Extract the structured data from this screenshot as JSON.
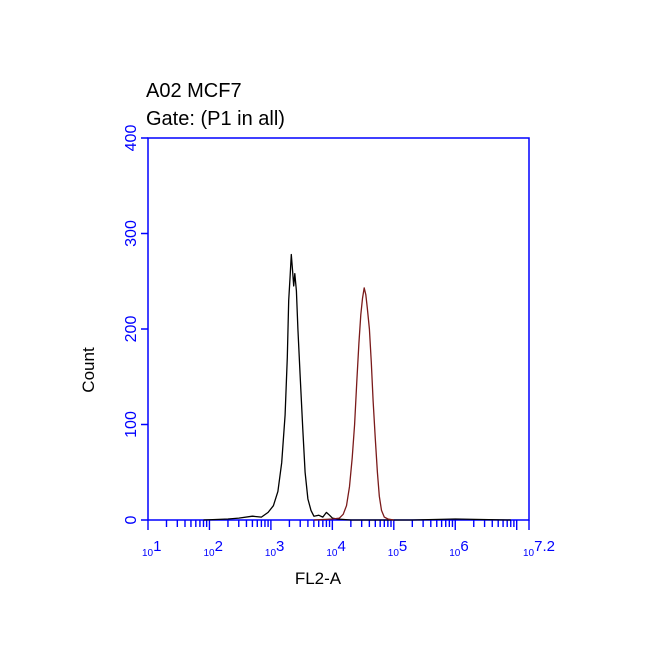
{
  "chart_data": {
    "type": "line",
    "title": "A02 MCF7",
    "subtitle": "Gate: (P1 in all)",
    "xlabel": "FL2-A",
    "ylabel": "Count",
    "x_scale": "log",
    "xlim": [
      10,
      15848932
    ],
    "ylim": [
      0,
      400
    ],
    "y_ticks": [
      0,
      100,
      200,
      300,
      400
    ],
    "x_tick_labels": [
      {
        "base": "10",
        "exp": "1",
        "value": 10
      },
      {
        "base": "10",
        "exp": "2",
        "value": 100
      },
      {
        "base": "10",
        "exp": "3",
        "value": 1000
      },
      {
        "base": "10",
        "exp": "4",
        "value": 10000
      },
      {
        "base": "10",
        "exp": "5",
        "value": 100000
      },
      {
        "base": "10",
        "exp": "6",
        "value": 1000000
      },
      {
        "base": "10",
        "exp": "7.2",
        "value": 15848932
      }
    ],
    "grid": false,
    "colors": {
      "axis": "#0000ff",
      "series_1": "#000000",
      "series_2": "#7a1a1a"
    },
    "series": [
      {
        "color": "#000000",
        "points": [
          [
            80,
            0
          ],
          [
            200,
            1
          ],
          [
            300,
            2
          ],
          [
            500,
            4
          ],
          [
            700,
            3
          ],
          [
            900,
            8
          ],
          [
            1100,
            15
          ],
          [
            1300,
            30
          ],
          [
            1500,
            60
          ],
          [
            1700,
            110
          ],
          [
            1850,
            170
          ],
          [
            1950,
            230
          ],
          [
            2050,
            255
          ],
          [
            2150,
            278
          ],
          [
            2250,
            262
          ],
          [
            2350,
            245
          ],
          [
            2450,
            258
          ],
          [
            2600,
            240
          ],
          [
            2750,
            200
          ],
          [
            3000,
            150
          ],
          [
            3300,
            95
          ],
          [
            3600,
            50
          ],
          [
            4000,
            22
          ],
          [
            4500,
            10
          ],
          [
            5000,
            4
          ],
          [
            6000,
            5
          ],
          [
            7000,
            3
          ],
          [
            8000,
            8
          ],
          [
            9000,
            5
          ],
          [
            10000,
            2
          ],
          [
            12000,
            1
          ],
          [
            20000,
            0
          ],
          [
            200000,
            0
          ],
          [
            1000000,
            1
          ],
          [
            8000000,
            0
          ]
        ]
      },
      {
        "color": "#7a1a1a",
        "points": [
          [
            5000,
            0
          ],
          [
            10000,
            1
          ],
          [
            13000,
            2
          ],
          [
            15000,
            6
          ],
          [
            17000,
            15
          ],
          [
            19000,
            35
          ],
          [
            21000,
            65
          ],
          [
            23000,
            100
          ],
          [
            25000,
            145
          ],
          [
            27000,
            185
          ],
          [
            29000,
            215
          ],
          [
            31000,
            232
          ],
          [
            33000,
            243
          ],
          [
            35000,
            236
          ],
          [
            37000,
            222
          ],
          [
            40000,
            200
          ],
          [
            43000,
            165
          ],
          [
            46000,
            125
          ],
          [
            50000,
            85
          ],
          [
            54000,
            50
          ],
          [
            58000,
            25
          ],
          [
            63000,
            10
          ],
          [
            70000,
            3
          ],
          [
            80000,
            1
          ],
          [
            100000,
            0
          ]
        ]
      }
    ]
  }
}
